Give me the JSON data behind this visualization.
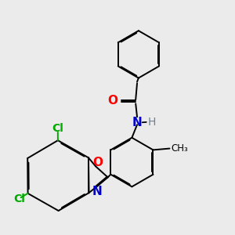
{
  "bg_color": "#ebebeb",
  "bond_color": "#000000",
  "atom_colors": {
    "O": "#ff0000",
    "N": "#0000cc",
    "Cl": "#00aa00",
    "H": "#708090",
    "C": "#000000"
  },
  "lw": 1.4,
  "fs": 10
}
